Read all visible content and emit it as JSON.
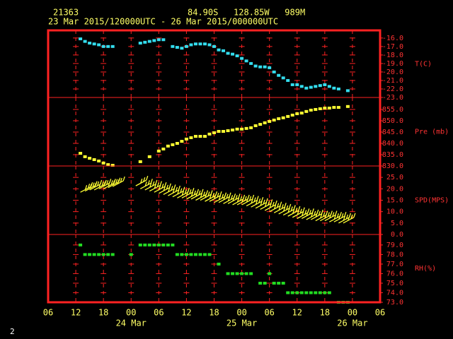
{
  "header": {
    "station": "21363",
    "location": "84.90S   128.85W   989M",
    "period": "23 Mar 2015/120000UTC - 26 Mar 2015/000000UTC",
    "page_number": "2"
  },
  "x_axis": {
    "xlim": [
      0,
      72
    ],
    "xticks": [
      {
        "value": 0,
        "label": "06"
      },
      {
        "value": 6,
        "label": "12"
      },
      {
        "value": 12,
        "label": "18"
      },
      {
        "value": 18,
        "label": "00"
      },
      {
        "value": 24,
        "label": "06"
      },
      {
        "value": 30,
        "label": "12"
      },
      {
        "value": 36,
        "label": "18"
      },
      {
        "value": 42,
        "label": "00"
      },
      {
        "value": 48,
        "label": "06"
      },
      {
        "value": 54,
        "label": "12"
      },
      {
        "value": 60,
        "label": "18"
      },
      {
        "value": 66,
        "label": "00"
      },
      {
        "value": 72,
        "label": "06"
      }
    ],
    "dates": [
      {
        "value": 18,
        "label": "24 Mar"
      },
      {
        "value": 42,
        "label": "25 Mar"
      },
      {
        "value": 66,
        "label": "26 Mar"
      }
    ]
  },
  "chart_data": [
    {
      "type": "scatter",
      "y_label": "T(C)",
      "color": "#33ddee",
      "x": [
        7,
        8,
        9,
        10,
        11,
        12,
        13,
        14,
        15,
        16,
        17,
        18,
        19,
        20,
        21,
        22,
        23,
        24,
        25,
        26,
        27,
        28,
        29,
        30,
        31,
        32,
        33,
        34,
        35,
        36,
        37,
        38,
        39,
        40,
        41,
        42,
        43,
        44,
        45,
        46,
        47,
        48,
        49,
        50,
        51,
        52,
        53,
        54,
        55,
        56,
        57,
        58,
        59,
        60,
        61,
        62,
        63,
        64,
        65,
        66
      ],
      "values": [
        -16.1,
        -16.4,
        -16.6,
        -16.7,
        -16.8,
        -17.0,
        -17.0,
        -17.0,
        null,
        null,
        null,
        null,
        null,
        -16.6,
        -16.5,
        -16.4,
        -16.3,
        -16.2,
        -16.2,
        null,
        -17.0,
        -17.1,
        -17.2,
        -17.0,
        -16.8,
        -16.7,
        -16.7,
        -16.7,
        -16.8,
        -17.0,
        -17.4,
        -17.5,
        -17.8,
        -17.9,
        -18.1,
        -18.4,
        -18.7,
        -19.0,
        -19.3,
        -19.4,
        -19.4,
        -19.5,
        -20.0,
        -20.4,
        -20.7,
        -21.0,
        -21.5,
        -21.5,
        -21.7,
        -21.9,
        -21.8,
        -21.7,
        -21.6,
        -21.5,
        -21.7,
        -21.9,
        -22.0,
        null,
        -22.2,
        null
      ],
      "ylim": [
        -23,
        -15.1
      ],
      "yticks": [
        {
          "value": -16,
          "label": "-16.0"
        },
        {
          "value": -17,
          "label": "-17.0"
        },
        {
          "value": -18,
          "label": "-18.0"
        },
        {
          "value": -19,
          "label": "-19.0"
        },
        {
          "value": -20,
          "label": "-20.0"
        },
        {
          "value": -21,
          "label": "-21.0"
        },
        {
          "value": -22,
          "label": "-22.0"
        },
        {
          "value": -23,
          "label": "-23.0"
        }
      ]
    },
    {
      "type": "scatter",
      "y_label": "Pre (mb)",
      "color": "#ffff33",
      "x": [
        7,
        8,
        9,
        10,
        11,
        12,
        13,
        14,
        15,
        16,
        17,
        18,
        19,
        20,
        21,
        22,
        23,
        24,
        25,
        26,
        27,
        28,
        29,
        30,
        31,
        32,
        33,
        34,
        35,
        36,
        37,
        38,
        39,
        40,
        41,
        42,
        43,
        44,
        45,
        46,
        47,
        48,
        49,
        50,
        51,
        52,
        53,
        54,
        55,
        56,
        57,
        58,
        59,
        60,
        61,
        62,
        63,
        64,
        65,
        66
      ],
      "values": [
        835.6,
        834.1,
        833.4,
        832.8,
        832.2,
        831.3,
        830.6,
        830.3,
        null,
        null,
        null,
        null,
        null,
        831.9,
        null,
        834.1,
        null,
        836.6,
        837.5,
        838.8,
        839.4,
        840.0,
        840.9,
        841.9,
        842.5,
        843.1,
        843.1,
        843.1,
        844.1,
        844.7,
        845.3,
        845.3,
        845.6,
        845.9,
        846.3,
        846.3,
        846.6,
        846.9,
        847.8,
        848.4,
        849.1,
        849.7,
        850.3,
        850.9,
        851.3,
        851.9,
        852.5,
        853.1,
        853.4,
        854.1,
        854.7,
        855.0,
        855.3,
        855.6,
        855.6,
        855.9,
        855.9,
        null,
        856.3,
        null
      ],
      "ylim": [
        830,
        860.3
      ],
      "yticks": [
        {
          "value": 830,
          "label": "830.0"
        },
        {
          "value": 835,
          "label": "835.0"
        },
        {
          "value": 840,
          "label": "840.0"
        },
        {
          "value": 845,
          "label": "845.0"
        },
        {
          "value": 850,
          "label": "850.0"
        },
        {
          "value": 855,
          "label": "855.0"
        }
      ]
    },
    {
      "type": "barb",
      "y_label": "SPD(MPS)",
      "color": "#ffff33",
      "x": [
        7,
        8,
        9,
        10,
        11,
        12,
        13,
        14,
        15,
        16,
        17,
        18,
        19,
        20,
        21,
        22,
        23,
        24,
        25,
        26,
        27,
        28,
        29,
        30,
        31,
        32,
        33,
        34,
        35,
        36,
        37,
        38,
        39,
        40,
        41,
        42,
        43,
        44,
        45,
        46,
        47,
        48,
        49,
        50,
        51,
        52,
        53,
        54,
        55,
        56,
        57,
        58,
        59,
        60,
        61,
        62,
        63,
        64,
        65,
        66
      ],
      "values": [
        18.5,
        19,
        19.5,
        19.5,
        20,
        20,
        20.5,
        21,
        null,
        null,
        null,
        null,
        21.3,
        20,
        19.5,
        19,
        18.5,
        18,
        17.5,
        17,
        16.5,
        16,
        16,
        15.5,
        15.5,
        15,
        15,
        14.5,
        14.5,
        14,
        14,
        13.5,
        13.5,
        13,
        13,
        13,
        12.5,
        12,
        11.5,
        11,
        10.5,
        10,
        9.5,
        9,
        8.5,
        8,
        7.5,
        7,
        7,
        6.5,
        6.5,
        6,
        6,
        6,
        5.5,
        5.5,
        5,
        5,
        null,
        null
      ],
      "ylim": [
        0,
        30
      ],
      "yticks": [
        {
          "value": 0,
          "label": "0.0"
        },
        {
          "value": 5,
          "label": "5.0"
        },
        {
          "value": 10,
          "label": "10.0"
        },
        {
          "value": 15,
          "label": "15.0"
        },
        {
          "value": 20,
          "label": "20.0"
        },
        {
          "value": 25,
          "label": "25.0"
        }
      ]
    },
    {
      "type": "scatter",
      "y_label": "RH(%)",
      "color": "#22dd22",
      "x": [
        7,
        8,
        9,
        10,
        11,
        12,
        13,
        14,
        15,
        16,
        17,
        18,
        19,
        20,
        21,
        22,
        23,
        24,
        25,
        26,
        27,
        28,
        29,
        30,
        31,
        32,
        33,
        34,
        35,
        36,
        37,
        38,
        39,
        40,
        41,
        42,
        43,
        44,
        45,
        46,
        47,
        48,
        49,
        50,
        51,
        52,
        53,
        54,
        55,
        56,
        57,
        58,
        59,
        60,
        61,
        62,
        63,
        64,
        65,
        66
      ],
      "values": [
        79,
        78,
        78,
        78,
        78,
        78,
        78,
        78,
        null,
        null,
        null,
        78,
        null,
        79,
        79,
        79,
        79,
        79,
        79,
        79,
        79,
        78,
        78,
        78,
        78,
        78,
        78,
        78,
        78,
        null,
        77,
        null,
        76,
        76,
        76,
        76,
        76,
        76,
        null,
        75,
        75,
        76,
        75,
        75,
        75,
        74,
        74,
        74,
        74,
        74,
        74,
        74,
        74,
        74,
        74,
        null,
        73,
        73,
        73,
        null
      ],
      "ylim": [
        73,
        80.1
      ],
      "yticks": [
        {
          "value": 73,
          "label": "73.0"
        },
        {
          "value": 74,
          "label": "74.0"
        },
        {
          "value": 75,
          "label": "75.0"
        },
        {
          "value": 76,
          "label": "76.0"
        },
        {
          "value": 77,
          "label": "77.0"
        },
        {
          "value": 78,
          "label": "78.0"
        },
        {
          "value": 79,
          "label": "79.0"
        }
      ]
    }
  ]
}
